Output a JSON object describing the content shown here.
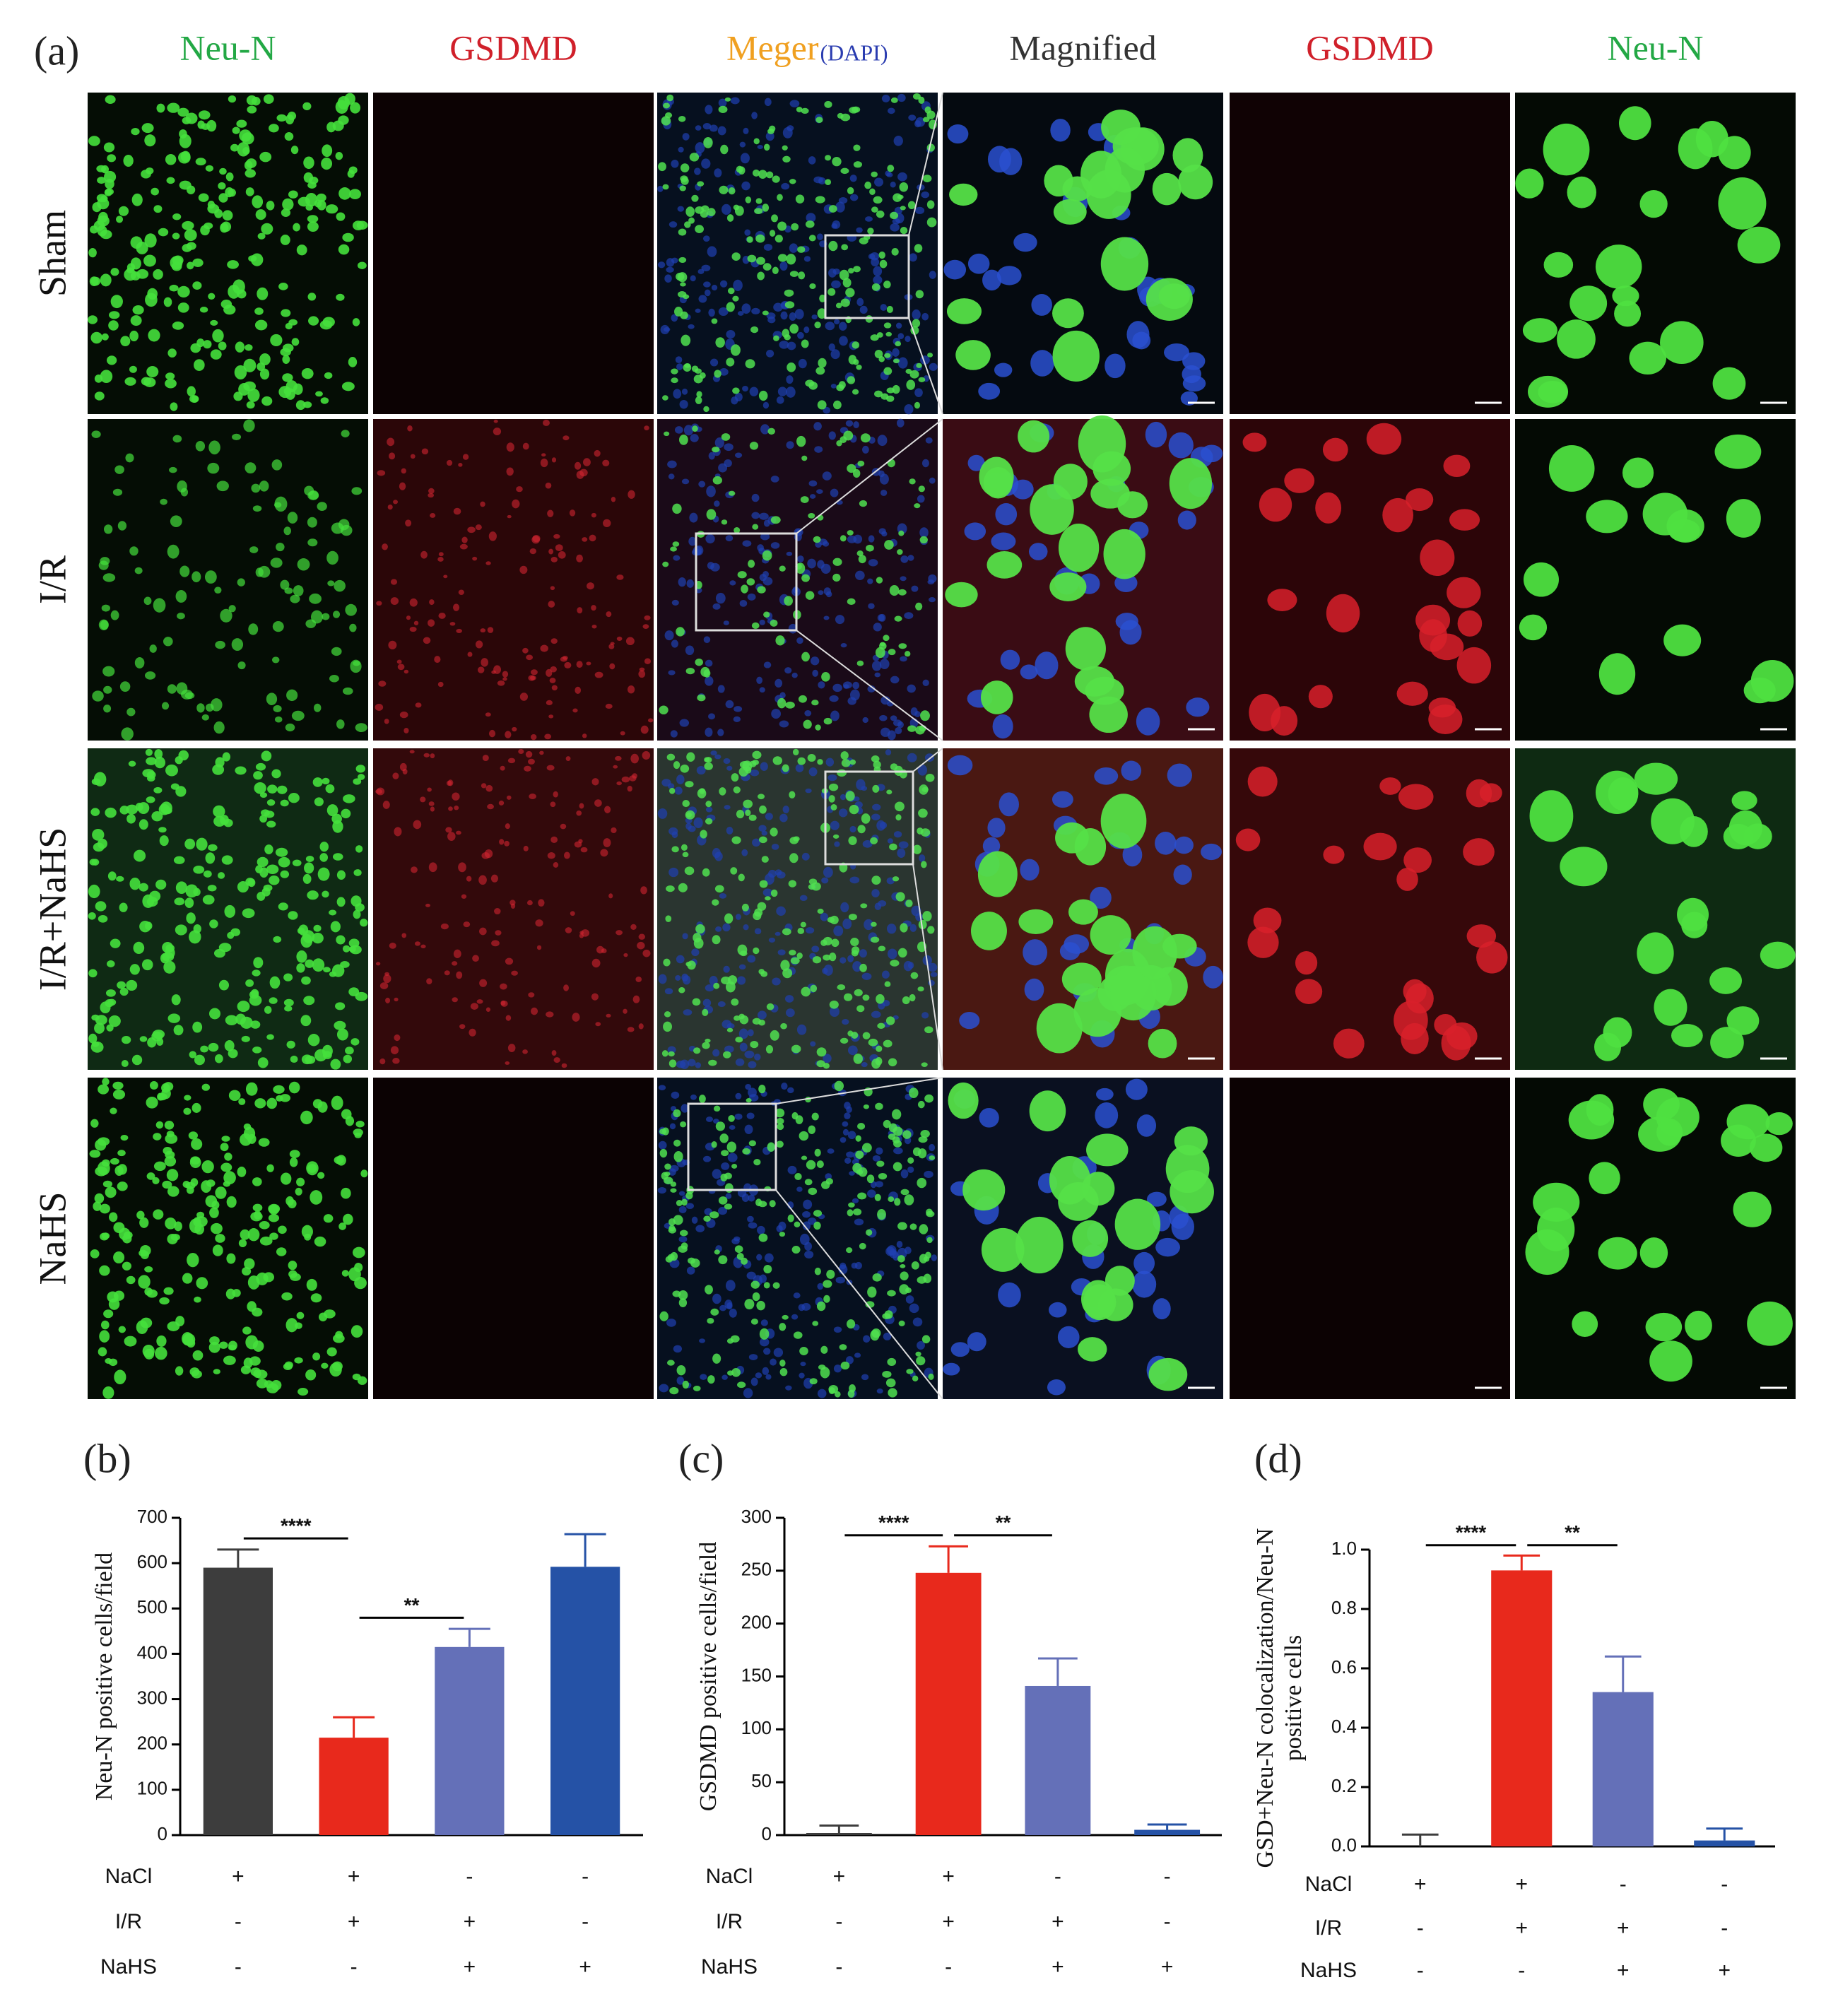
{
  "micrograph": {
    "label": "(a)",
    "columns": [
      "Neu-N",
      "GSDMD",
      "Meger",
      "Magnified",
      "GSDMD",
      "Neu-N"
    ],
    "column_colors": [
      "#23a845",
      "#d0202a",
      "#f0a020",
      "#333333",
      "#d0202a",
      "#23a845"
    ],
    "merge_note": "(DAPI)",
    "merge_note_color": "#2a3cb0",
    "rows": [
      "Sham",
      "I/R",
      "I/R+NaHS",
      "NaHS"
    ]
  },
  "chart_data": [
    {
      "type": "bar",
      "label": "(b)",
      "y_label": [
        "Neu-N positive cells/field"
      ],
      "series": [
        {
          "colors": [
            "#3d3d3d",
            "#e8291c",
            "#6470b8",
            "#2552a6"
          ],
          "values": [
            590,
            215,
            415,
            592
          ],
          "errors": [
            40,
            45,
            40,
            72
          ]
        }
      ],
      "ylim": [
        0,
        700
      ],
      "yticks": [
        0,
        100,
        200,
        300,
        400,
        500,
        600,
        700
      ],
      "significance": [
        "****",
        "**"
      ],
      "conditions": [
        {
          "name": "NaCl",
          "signs": [
            "+",
            "+",
            "-",
            "-"
          ]
        },
        {
          "name": "I/R",
          "signs": [
            "-",
            "+",
            "+",
            "-"
          ]
        },
        {
          "name": "NaHS",
          "signs": [
            "-",
            "-",
            "+",
            "+"
          ]
        }
      ]
    },
    {
      "type": "bar",
      "label": "(c)",
      "y_label": [
        "GSDMD positive  cells/field"
      ],
      "series": [
        {
          "colors": [
            "#3d3d3d",
            "#e8291c",
            "#6470b8",
            "#2552a6"
          ],
          "values": [
            2,
            248,
            141,
            5
          ],
          "errors": [
            7,
            25,
            26,
            5
          ]
        }
      ],
      "ylim": [
        0,
        300
      ],
      "yticks": [
        0,
        50,
        100,
        150,
        200,
        250,
        300
      ],
      "significance": [
        "****",
        "**"
      ],
      "conditions": [
        {
          "name": "NaCl",
          "signs": [
            "+",
            "+",
            "-",
            "-"
          ]
        },
        {
          "name": "I/R",
          "signs": [
            "-",
            "+",
            "+",
            "-"
          ]
        },
        {
          "name": "NaHS",
          "signs": [
            "-",
            "-",
            "+",
            "+"
          ]
        }
      ]
    },
    {
      "type": "bar",
      "label": "(d)",
      "y_label": [
        "GSD+Neu-N colocalization/Neu-N",
        "positive  cells"
      ],
      "series": [
        {
          "colors": [
            "#3d3d3d",
            "#e8291c",
            "#6470b8",
            "#2552a6"
          ],
          "values": [
            0,
            0.93,
            0.52,
            0.02
          ],
          "errors": [
            0.04,
            0.05,
            0.12,
            0.04
          ]
        }
      ],
      "ylim": [
        0,
        1.0
      ],
      "yticks": [
        {
          "value": 0,
          "label": "0.0"
        },
        0.2,
        0.4,
        0.6,
        0.8,
        {
          "value": 1,
          "label": "1.0"
        }
      ],
      "significance": [
        "****",
        "**"
      ],
      "conditions": [
        {
          "name": "NaCl",
          "signs": [
            "+",
            "+",
            "-",
            "-"
          ]
        },
        {
          "name": "I/R",
          "signs": [
            "-",
            "+",
            "+",
            "-"
          ]
        },
        {
          "name": "NaHS",
          "signs": [
            "-",
            "-",
            "+",
            "+"
          ]
        }
      ]
    }
  ]
}
